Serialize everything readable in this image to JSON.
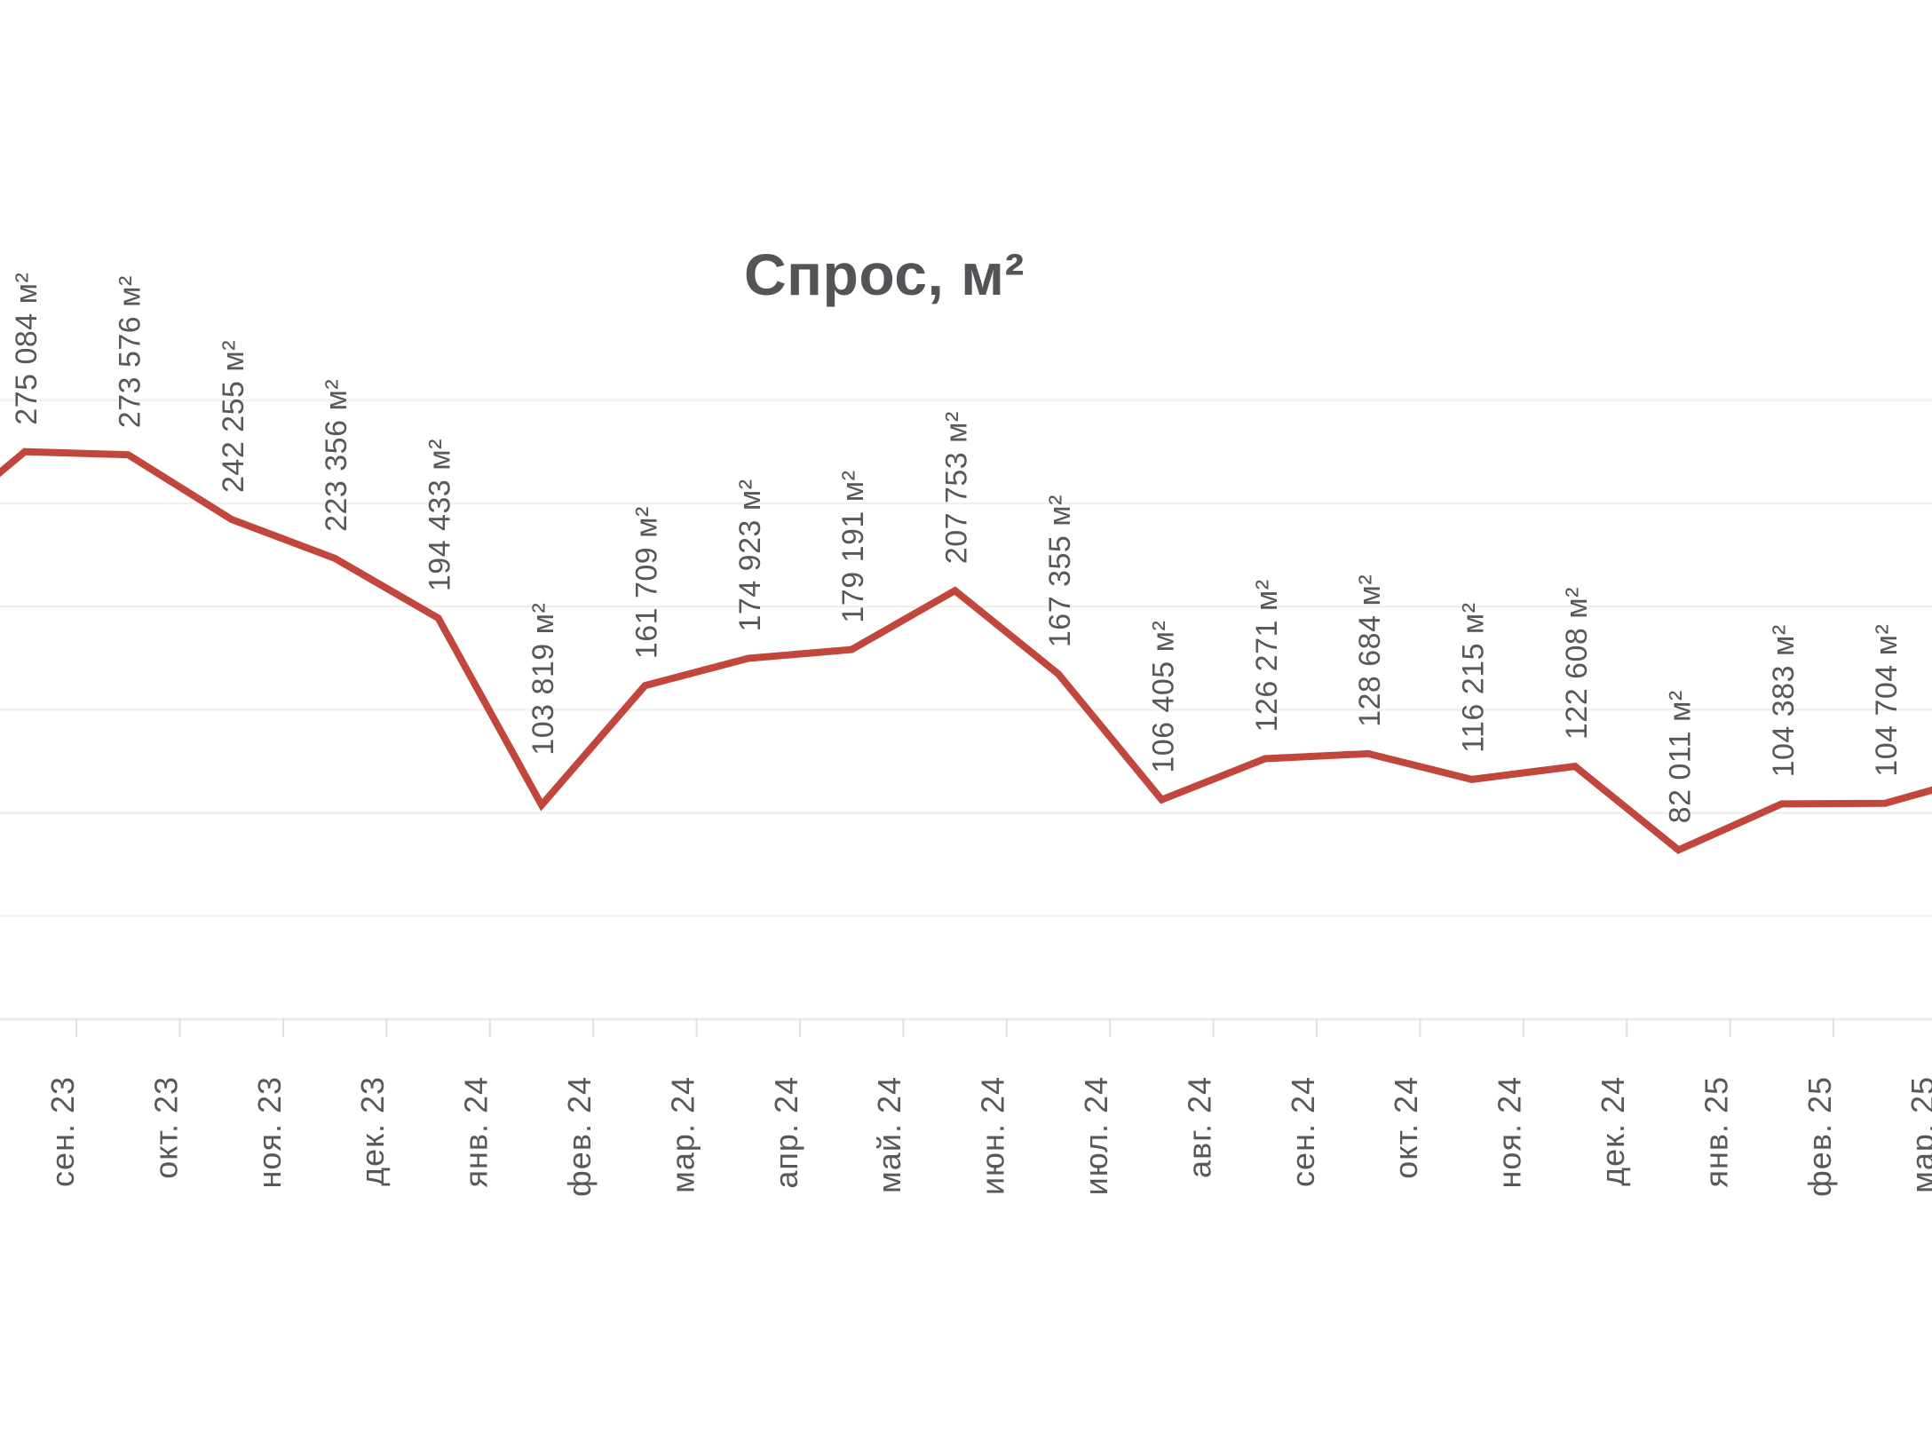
{
  "chart_data": {
    "type": "line",
    "title": "Спрос, м²",
    "unit": "м²",
    "x_categories": [
      "сен. 23",
      "окт. 23",
      "ноя. 23",
      "дек. 23",
      "янв. 24",
      "фев. 24",
      "мар. 24",
      "апр. 24",
      "май. 24",
      "июн. 24",
      "июл. 24",
      "авг. 24",
      "сен. 24",
      "окт. 24",
      "ноя. 24",
      "дек. 24",
      "янв. 25",
      "фев. 25",
      "мар. 25"
    ],
    "values": [
      275084,
      273576,
      242255,
      223356,
      194433,
      103819,
      161709,
      174923,
      179191,
      207753,
      167355,
      106405,
      126271,
      128684,
      116215,
      122608,
      82011,
      104383,
      104704
    ],
    "value_labels": [
      "275 084 м²",
      "273 576 м²",
      "242 255 м²",
      "223 356 м²",
      "194 433 м²",
      "103 819 м²",
      "161 709 м²",
      "174 923 м²",
      "179 191 м²",
      "207 753 м²",
      "167 355 м²",
      "106 405 м²",
      "126 271 м²",
      "128 684 м²",
      "116 215 м²",
      "122 608 м²",
      "82 011 м²",
      "104 383 м²",
      "104 704 м²"
    ],
    "offscreen_prev_value": 233300,
    "offscreen_next_value": 118700,
    "ylim": [
      0,
      345000
    ],
    "gridline_step": 50000,
    "gridline_values": [
      50000,
      100000,
      150000,
      200000,
      250000,
      300000
    ],
    "legend": "none",
    "grid": "horizontal-only",
    "colors": {
      "line": "#c1463c",
      "label_text": "#57585b",
      "title_text": "#525457",
      "gridline": "#f0f0f1",
      "axis_line": "#ececee",
      "tick": "#e0e0e3",
      "background": "#ffffff"
    }
  }
}
